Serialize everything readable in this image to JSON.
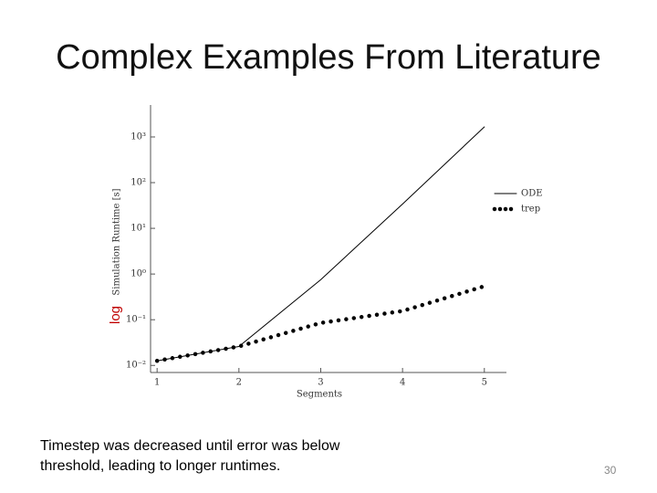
{
  "title": "Complex Examples From Literature",
  "caption": "Timestep was decreased until error was below threshold, leading to longer runtimes.",
  "page_number": "30",
  "chart_data": {
    "type": "line",
    "x_label": "Segments",
    "y_label": "Simulation Runtime [s]",
    "annotation": "log",
    "x": [
      1,
      2,
      3,
      4,
      5
    ],
    "series": [
      {
        "name": "ODE",
        "color": "#000000",
        "style": "solid",
        "values": [
          0.0126,
          0.026,
          0.75,
          34,
          1660
        ]
      },
      {
        "name": "trep",
        "color": "#000000",
        "style": "dotted",
        "values": [
          0.0126,
          0.026,
          0.085,
          0.155,
          0.54
        ]
      }
    ],
    "xlim": [
      0.92,
      5.27
    ],
    "xticks": [
      1,
      2,
      3,
      4,
      5
    ],
    "ylim": [
      0.007,
      5000
    ],
    "log_y": true,
    "yticks": [
      {
        "value": 0.01,
        "label": "10⁻²"
      },
      {
        "value": 0.1,
        "label": "10⁻¹"
      },
      {
        "value": 1,
        "label": "10⁰"
      },
      {
        "value": 10,
        "label": "10¹"
      },
      {
        "value": 100,
        "label": "10²"
      },
      {
        "value": 1000,
        "label": "10³"
      }
    ],
    "grid": false,
    "legend": "right"
  }
}
